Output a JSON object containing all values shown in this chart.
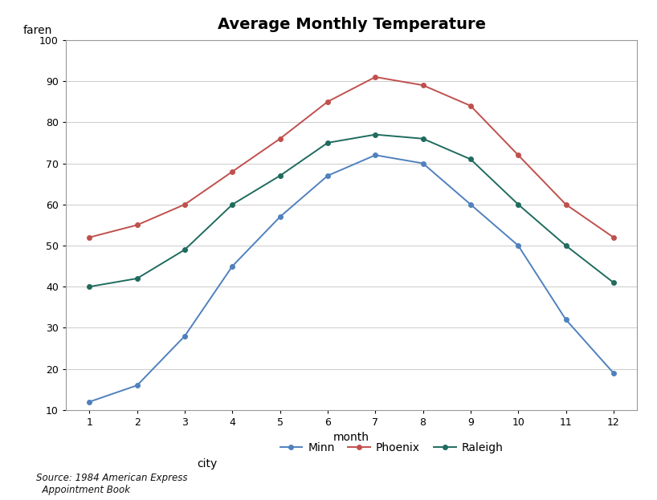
{
  "title": "Average Monthly Temperature",
  "xlabel": "month",
  "ylabel": "faren",
  "months": [
    1,
    2,
    3,
    4,
    5,
    6,
    7,
    8,
    9,
    10,
    11,
    12
  ],
  "minn": [
    12,
    16,
    28,
    45,
    57,
    67,
    72,
    70,
    60,
    50,
    32,
    19
  ],
  "phoenix": [
    52,
    55,
    60,
    68,
    76,
    85,
    91,
    89,
    84,
    72,
    60,
    52
  ],
  "raleigh": [
    40,
    42,
    49,
    60,
    67,
    75,
    77,
    76,
    71,
    60,
    50,
    41
  ],
  "minn_color": "#4f81bd",
  "phoenix_color": "#c0504d",
  "raleigh_color": "#1f6b5e",
  "ylim_min": 10,
  "ylim_max": 100,
  "yticks": [
    10,
    20,
    30,
    40,
    50,
    60,
    70,
    80,
    90,
    100
  ],
  "xticks": [
    1,
    2,
    3,
    4,
    5,
    6,
    7,
    8,
    9,
    10,
    11,
    12
  ],
  "source_text": "Source: 1984 American Express\n  Appointment Book",
  "bg_color": "#ffffff",
  "plot_bg_color": "#ffffff",
  "border_color": "#999999",
  "title_fontsize": 14,
  "axis_label_fontsize": 10,
  "tick_fontsize": 9,
  "legend_fontsize": 10
}
